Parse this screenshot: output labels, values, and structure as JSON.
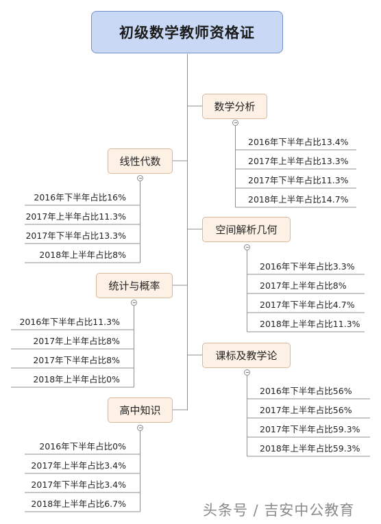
{
  "root": {
    "title": "初级数学教师资格证"
  },
  "branches": [
    {
      "title": "数学分析",
      "side": "right",
      "leaves": [
        "2016年下半年占比13.4%",
        "2017年上半年占比13.3%",
        "2017年下半年占比11.3%",
        "2018年上半年占比14.7%"
      ]
    },
    {
      "title": "线性代数",
      "side": "left",
      "leaves": [
        "2016年下半年占比16%",
        "2017年上半年占比11.3%",
        "2017年下半年占比13.3%",
        "2018年上半年占比8%"
      ]
    },
    {
      "title": "空间解析几何",
      "side": "right",
      "leaves": [
        "2016年下半年占比3.3%",
        "2017年上半年占比8%",
        "2017年下半年占比4.7%",
        "2018年上半年占比11.3%"
      ]
    },
    {
      "title": "统计与概率",
      "side": "left",
      "leaves": [
        "2016年下半年占比11.3%",
        "2017年上半年占比8%",
        "2017年下半年占比8%",
        "2018年上半年占比0%"
      ]
    },
    {
      "title": "课标及教学论",
      "side": "right",
      "leaves": [
        "2016年下半年占比56%",
        "2017年上半年占比56%",
        "2017年下半年占比59.3%",
        "2018年上半年占比59.3%"
      ]
    },
    {
      "title": "高中知识",
      "side": "left",
      "leaves": [
        "2016年下半年占比0%",
        "2017年上半年占比3.4%",
        "2017年下半年占比3.4%",
        "2018年上半年占比6.7%"
      ]
    }
  ],
  "watermark": "头条号 / 吉安中公教育",
  "colors": {
    "root_fill": "#c9d9f5",
    "branch_fill": "#fdf1e6",
    "line": "#8c8c8c"
  }
}
